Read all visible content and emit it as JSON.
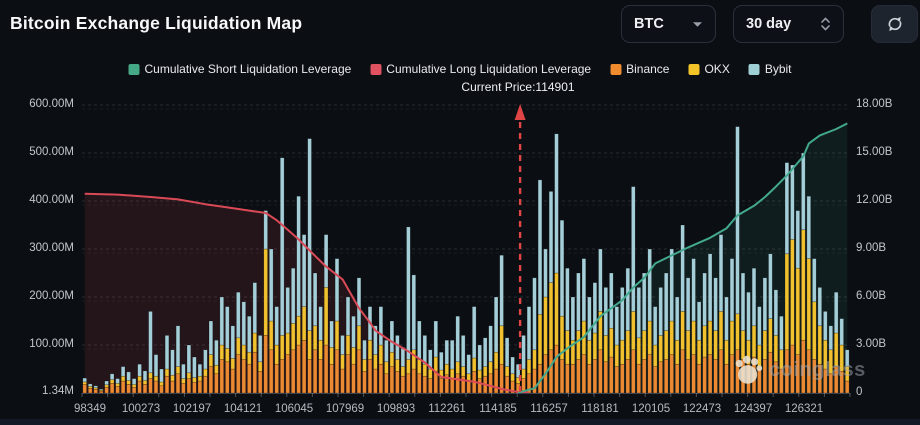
{
  "header": {
    "title": "Bitcoin Exchange Liquidation Map",
    "coin_selector": {
      "value": "BTC"
    },
    "range_selector": {
      "value": "30 day"
    }
  },
  "legend": {
    "items": [
      {
        "label": "Cumulative Short Liquidation Leverage",
        "color": "#45a886"
      },
      {
        "label": "Cumulative Long Liquidation Leverage",
        "color": "#e15260"
      },
      {
        "label": "Binance",
        "color": "#f08c2e"
      },
      {
        "label": "OKX",
        "color": "#f3c327"
      },
      {
        "label": "Bybit",
        "color": "#9fd0d6"
      }
    ]
  },
  "annotation": {
    "current_price_label": "Current Price:114901",
    "current_price": 114901
  },
  "watermark": {
    "text": "coinglass"
  },
  "colors": {
    "background": "#0b0e13",
    "panel": "#0d1017",
    "border": "#2a303b",
    "text_primary": "#f2f4f6",
    "text_secondary": "#b6bac1",
    "long_line": "#d94a56",
    "short_line": "#42a98e",
    "long_area": "rgba(217,74,86,0.12)",
    "short_area": "rgba(66,169,142,0.10)",
    "binance": "#ec8a33",
    "okx": "#f2c12f",
    "bybit": "#a4ced8",
    "arrow": "#e04545",
    "baseline": "#3a414d"
  },
  "chart_data": {
    "type": "bar",
    "subtype": "stacked bars (left axis, liquidation USD) + cumulative leverage lines (right axis)",
    "title": "Bitcoin Exchange Liquidation Map",
    "left_axis": {
      "tick_labels": [
        "600.00M",
        "500.00M",
        "400.00M",
        "300.00M",
        "200.00M",
        "100.00M",
        "1.34M"
      ],
      "tick_values_M": [
        600,
        500,
        400,
        300,
        200,
        100,
        1.34
      ],
      "range_M": [
        1.34,
        600
      ],
      "grid": "dashed"
    },
    "right_axis": {
      "tick_labels": [
        "18.00B",
        "15.00B",
        "12.00B",
        "9.00B",
        "6.00B",
        "3.00B",
        "0"
      ],
      "tick_values_B": [
        18,
        15,
        12,
        9,
        6,
        3,
        0
      ],
      "range_B": [
        0,
        18
      ]
    },
    "x_axis": {
      "tick_labels": [
        "98349",
        "100273",
        "102197",
        "104121",
        "106045",
        "107969",
        "109893",
        "112261",
        "114185",
        "116257",
        "118181",
        "120105",
        "122473",
        "124397",
        "126321"
      ],
      "meaning": "BTC price levels"
    },
    "bar_series_order": [
      "Binance",
      "OKX",
      "Bybit"
    ],
    "current_price_bar_index": 79,
    "bars_M": [
      [
        18,
        5,
        8
      ],
      [
        10,
        4,
        5
      ],
      [
        8,
        3,
        4
      ],
      [
        4,
        2,
        2
      ],
      [
        12,
        5,
        8
      ],
      [
        20,
        8,
        12
      ],
      [
        14,
        6,
        10
      ],
      [
        25,
        10,
        20
      ],
      [
        18,
        8,
        18
      ],
      [
        12,
        6,
        12
      ],
      [
        25,
        10,
        25
      ],
      [
        18,
        8,
        20
      ],
      [
        30,
        12,
        128
      ],
      [
        25,
        10,
        45
      ],
      [
        15,
        8,
        27
      ],
      [
        35,
        15,
        70
      ],
      [
        25,
        12,
        53
      ],
      [
        40,
        15,
        85
      ],
      [
        20,
        10,
        30
      ],
      [
        30,
        12,
        58
      ],
      [
        22,
        10,
        43
      ],
      [
        25,
        10,
        25
      ],
      [
        35,
        15,
        40
      ],
      [
        55,
        25,
        70
      ],
      [
        40,
        18,
        52
      ],
      [
        70,
        30,
        100
      ],
      [
        65,
        28,
        87
      ],
      [
        50,
        22,
        68
      ],
      [
        80,
        35,
        95
      ],
      [
        70,
        30,
        90
      ],
      [
        60,
        25,
        75
      ],
      [
        85,
        40,
        105
      ],
      [
        45,
        20,
        55
      ],
      [
        120,
        180,
        80
      ],
      [
        90,
        60,
        150
      ],
      [
        60,
        40,
        80
      ],
      [
        70,
        50,
        370
      ],
      [
        80,
        45,
        95
      ],
      [
        90,
        55,
        115
      ],
      [
        100,
        60,
        250
      ],
      [
        110,
        70,
        150
      ],
      [
        70,
        60,
        400
      ],
      [
        90,
        50,
        110
      ],
      [
        70,
        40,
        70
      ],
      [
        100,
        120,
        110
      ],
      [
        60,
        35,
        55
      ],
      [
        90,
        60,
        130
      ],
      [
        50,
        30,
        40
      ],
      [
        80,
        40,
        80
      ],
      [
        60,
        35,
        65
      ],
      [
        90,
        50,
        100
      ],
      [
        45,
        25,
        40
      ],
      [
        70,
        40,
        70
      ],
      [
        50,
        30,
        60
      ],
      [
        60,
        40,
        80
      ],
      [
        40,
        25,
        45
      ],
      [
        55,
        30,
        65
      ],
      [
        45,
        25,
        50
      ],
      [
        35,
        20,
        40
      ],
      [
        40,
        30,
        276
      ],
      [
        50,
        40,
        156
      ],
      [
        40,
        30,
        80
      ],
      [
        35,
        25,
        60
      ],
      [
        30,
        20,
        40
      ],
      [
        45,
        30,
        75
      ],
      [
        30,
        18,
        37
      ],
      [
        38,
        22,
        50
      ],
      [
        30,
        20,
        60
      ],
      [
        40,
        25,
        95
      ],
      [
        35,
        20,
        65
      ],
      [
        25,
        15,
        40
      ],
      [
        45,
        28,
        107
      ],
      [
        30,
        18,
        52
      ],
      [
        35,
        20,
        60
      ],
      [
        40,
        25,
        75
      ],
      [
        50,
        35,
        115
      ],
      [
        60,
        80,
        147
      ],
      [
        35,
        20,
        60
      ],
      [
        25,
        15,
        35
      ],
      [
        20,
        12,
        28
      ],
      [
        30,
        20,
        70
      ],
      [
        40,
        30,
        110
      ],
      [
        50,
        40,
        150
      ],
      [
        60,
        104,
        280
      ],
      [
        80,
        120,
        100
      ],
      [
        90,
        140,
        190
      ],
      [
        100,
        150,
        290
      ],
      [
        70,
        90,
        200
      ],
      [
        60,
        70,
        130
      ],
      [
        60,
        50,
        90
      ],
      [
        70,
        60,
        120
      ],
      [
        80,
        70,
        130
      ],
      [
        60,
        50,
        90
      ],
      [
        70,
        55,
        105
      ],
      [
        90,
        80,
        130
      ],
      [
        65,
        55,
        100
      ],
      [
        75,
        60,
        115
      ],
      [
        55,
        45,
        80
      ],
      [
        60,
        50,
        110
      ],
      [
        70,
        60,
        130
      ],
      [
        90,
        80,
        260
      ],
      [
        60,
        55,
        105
      ],
      [
        70,
        60,
        120
      ],
      [
        80,
        70,
        150
      ],
      [
        55,
        45,
        80
      ],
      [
        65,
        55,
        100
      ],
      [
        70,
        60,
        120
      ],
      [
        80,
        70,
        150
      ],
      [
        60,
        50,
        90
      ],
      [
        90,
        80,
        180
      ],
      [
        70,
        60,
        110
      ],
      [
        80,
        70,
        130
      ],
      [
        60,
        50,
        80
      ],
      [
        75,
        65,
        110
      ],
      [
        80,
        70,
        140
      ],
      [
        70,
        60,
        110
      ],
      [
        90,
        80,
        160
      ],
      [
        60,
        50,
        90
      ],
      [
        80,
        70,
        130
      ],
      [
        90,
        75,
        390
      ],
      [
        70,
        60,
        120
      ],
      [
        60,
        50,
        100
      ],
      [
        75,
        65,
        120
      ],
      [
        55,
        45,
        80
      ],
      [
        70,
        60,
        110
      ],
      [
        85,
        70,
        135
      ],
      [
        65,
        55,
        95
      ],
      [
        50,
        40,
        70
      ],
      [
        90,
        200,
        190
      ],
      [
        100,
        220,
        155
      ],
      [
        80,
        180,
        120
      ],
      [
        110,
        230,
        160
      ],
      [
        90,
        190,
        130
      ],
      [
        70,
        120,
        90
      ],
      [
        60,
        80,
        80
      ],
      [
        50,
        60,
        60
      ],
      [
        40,
        50,
        50
      ],
      [
        55,
        70,
        85
      ],
      [
        45,
        55,
        55
      ],
      [
        25,
        30,
        35
      ]
    ],
    "long_leverage_B": [
      [
        0,
        12.45
      ],
      [
        6,
        12.4
      ],
      [
        12,
        12.25
      ],
      [
        17,
        12.1
      ],
      [
        22,
        11.8
      ],
      [
        26,
        11.6
      ],
      [
        30,
        11.4
      ],
      [
        33,
        11.25
      ],
      [
        35,
        10.8
      ],
      [
        37,
        10.2
      ],
      [
        39,
        9.6
      ],
      [
        41,
        8.9
      ],
      [
        44,
        7.9
      ],
      [
        47,
        7.1
      ],
      [
        50,
        5.3
      ],
      [
        52,
        4.4
      ],
      [
        53,
        3.9
      ],
      [
        56,
        3.2
      ],
      [
        59,
        2.6
      ],
      [
        62,
        1.9
      ],
      [
        65,
        1.0
      ],
      [
        68,
        0.85
      ],
      [
        71,
        0.7
      ],
      [
        74,
        0.45
      ],
      [
        76,
        0.25
      ],
      [
        79,
        0.06
      ],
      [
        81,
        0.02
      ]
    ],
    "short_leverage_B": [
      [
        79,
        0.02
      ],
      [
        82,
        0.3
      ],
      [
        84,
        1.2
      ],
      [
        86,
        2.25
      ],
      [
        88,
        2.8
      ],
      [
        91,
        3.5
      ],
      [
        94,
        4.8
      ],
      [
        98,
        5.8
      ],
      [
        100,
        6.6
      ],
      [
        102,
        7.2
      ],
      [
        104,
        8.1
      ],
      [
        107,
        8.6
      ],
      [
        110,
        9.1
      ],
      [
        114,
        9.7
      ],
      [
        117,
        10.3
      ],
      [
        119,
        11.1
      ],
      [
        122,
        11.7
      ],
      [
        124,
        12.25
      ],
      [
        126,
        12.9
      ],
      [
        128,
        13.6
      ],
      [
        131,
        14.8
      ],
      [
        132,
        15.6
      ],
      [
        134,
        16.1
      ],
      [
        137,
        16.5
      ],
      [
        139,
        16.85
      ]
    ],
    "legend_position": "top-center",
    "grid_on": true
  }
}
